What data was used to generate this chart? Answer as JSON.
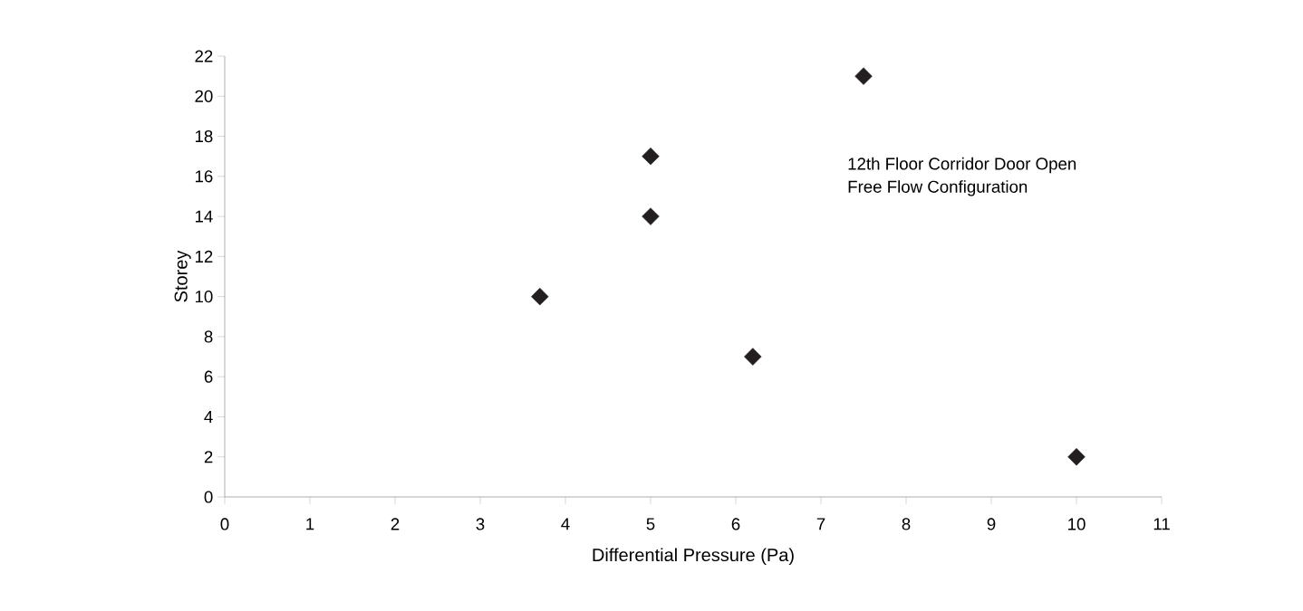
{
  "chart_data": {
    "type": "scatter",
    "xlabel": "Differential Pressure (Pa)",
    "ylabel": "Storey",
    "x": [
      3.7,
      5,
      5,
      6.2,
      7.5,
      10
    ],
    "values": [
      10,
      17,
      14,
      7,
      21,
      2
    ],
    "color": "#231f20",
    "marker": "diamond",
    "grid": false,
    "xlim": [
      0,
      11
    ],
    "xticks": [
      0,
      1,
      2,
      3,
      4,
      5,
      6,
      7,
      8,
      9,
      10,
      11
    ],
    "ylim": [
      0,
      22
    ],
    "yticks": [
      0,
      2,
      4,
      6,
      8,
      10,
      12,
      14,
      16,
      18,
      20,
      22
    ],
    "annotations": [
      "12th Floor Corridor Door Open",
      "Free Flow Configuration"
    ]
  }
}
